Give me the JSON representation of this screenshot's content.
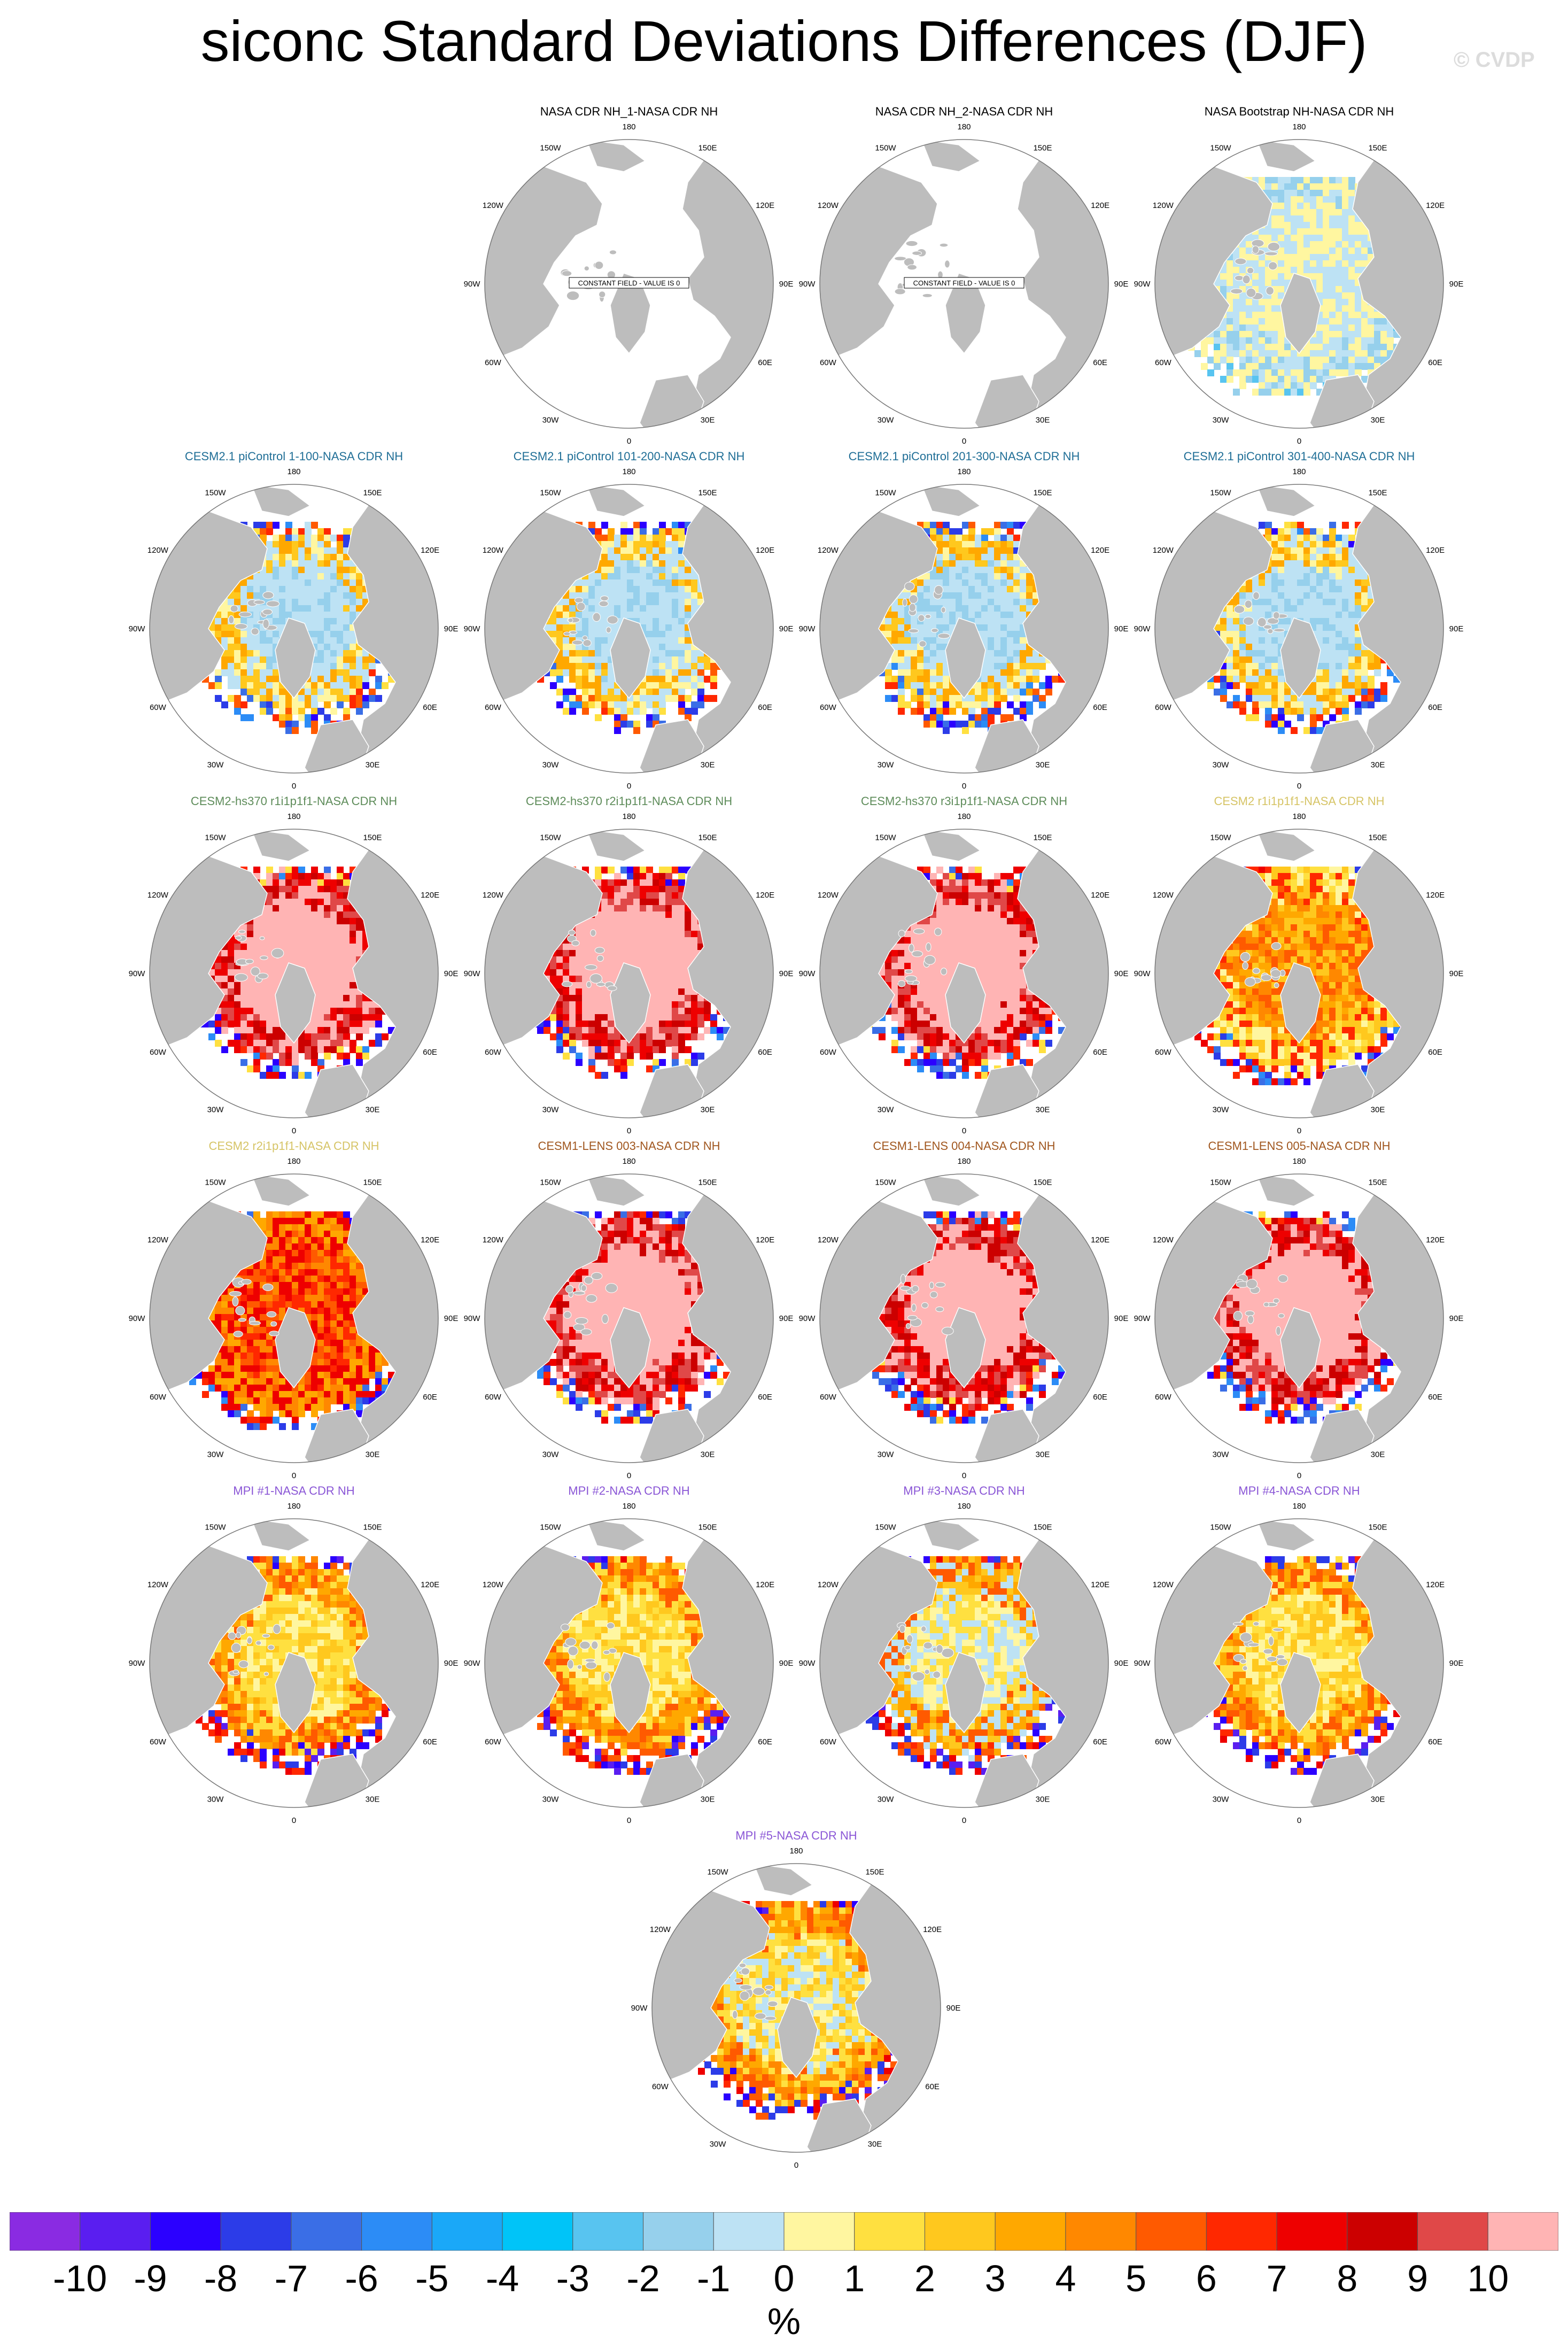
{
  "title": "siconc Standard Deviations Differences (DJF)",
  "watermark": "© CVDP",
  "lon_labels": [
    "180",
    "150E",
    "120E",
    "90E",
    "60E",
    "30E",
    "0",
    "30W",
    "60W",
    "90W",
    "120W",
    "150W"
  ],
  "panels": [
    {
      "title": "NASA CDR NH_1-NASA CDR NH",
      "title_color": "#000000",
      "pattern": "constant",
      "note": "CONSTANT FIELD - VALUE IS 0"
    },
    {
      "title": "NASA CDR NH_2-NASA CDR NH",
      "title_color": "#000000",
      "pattern": "constant",
      "note": "CONSTANT FIELD - VALUE IS 0"
    },
    {
      "title": "NASA Bootstrap NH-NASA CDR NH",
      "title_color": "#000000",
      "pattern": "bootstrap"
    },
    {
      "title": "CESM2.1 piControl 1-100-NASA CDR NH",
      "title_color": "#1f6e96",
      "pattern": "picontrol"
    },
    {
      "title": "CESM2.1 piControl 101-200-NASA CDR NH",
      "title_color": "#1f6e96",
      "pattern": "picontrol"
    },
    {
      "title": "CESM2.1 piControl 201-300-NASA CDR NH",
      "title_color": "#1f6e96",
      "pattern": "picontrol"
    },
    {
      "title": "CESM2.1 piControl 301-400-NASA CDR NH",
      "title_color": "#1f6e96",
      "pattern": "picontrol"
    },
    {
      "title": "CESM2-hs370 r1i1p1f1-NASA CDR NH",
      "title_color": "#5e8c5a",
      "pattern": "pinkcore"
    },
    {
      "title": "CESM2-hs370 r2i1p1f1-NASA CDR NH",
      "title_color": "#5e8c5a",
      "pattern": "pinkcore"
    },
    {
      "title": "CESM2-hs370 r3i1p1f1-NASA CDR NH",
      "title_color": "#5e8c5a",
      "pattern": "pinkcore"
    },
    {
      "title": "CESM2 r1i1p1f1-NASA CDR NH",
      "title_color": "#d6c466",
      "pattern": "orangecore"
    },
    {
      "title": "CESM2 r2i1p1f1-NASA CDR NH",
      "title_color": "#d6c466",
      "pattern": "redcore"
    },
    {
      "title": "CESM1-LENS 003-NASA CDR NH",
      "title_color": "#a0561e",
      "pattern": "pinkcore"
    },
    {
      "title": "CESM1-LENS 004-NASA CDR NH",
      "title_color": "#a0561e",
      "pattern": "pinkcore"
    },
    {
      "title": "CESM1-LENS 005-NASA CDR NH",
      "title_color": "#a0561e",
      "pattern": "pinkcore"
    },
    {
      "title": "MPI #1-NASA CDR NH",
      "title_color": "#8a56d6",
      "pattern": "mpi"
    },
    {
      "title": "MPI #2-NASA CDR NH",
      "title_color": "#8a56d6",
      "pattern": "mpi"
    },
    {
      "title": "MPI #3-NASA CDR NH",
      "title_color": "#8a56d6",
      "pattern": "mpi3"
    },
    {
      "title": "MPI #4-NASA CDR NH",
      "title_color": "#8a56d6",
      "pattern": "mpi"
    },
    {
      "title": "MPI #5-NASA CDR NH",
      "title_color": "#8a56d6",
      "pattern": "mpi5"
    }
  ],
  "colorbar": {
    "colors": [
      "#8a2be2",
      "#5a1ef0",
      "#2b00ff",
      "#2c3ce8",
      "#3a6ee6",
      "#2c8cf6",
      "#1aa8f8",
      "#00c4f8",
      "#58c4f0",
      "#96d0ec",
      "#bde2f4",
      "#fff6a0",
      "#ffe040",
      "#ffc81e",
      "#ffa800",
      "#ff8800",
      "#ff5a00",
      "#ff2800",
      "#ee0000",
      "#cc0000",
      "#e04848",
      "#ffb4b4"
    ],
    "labels": [
      "-10",
      "-9",
      "-8",
      "-7",
      "-6",
      "-5",
      "-4",
      "-3",
      "-2",
      "-1",
      "0",
      "1",
      "2",
      "3",
      "4",
      "5",
      "6",
      "7",
      "8",
      "9",
      "10"
    ],
    "units": "%"
  }
}
